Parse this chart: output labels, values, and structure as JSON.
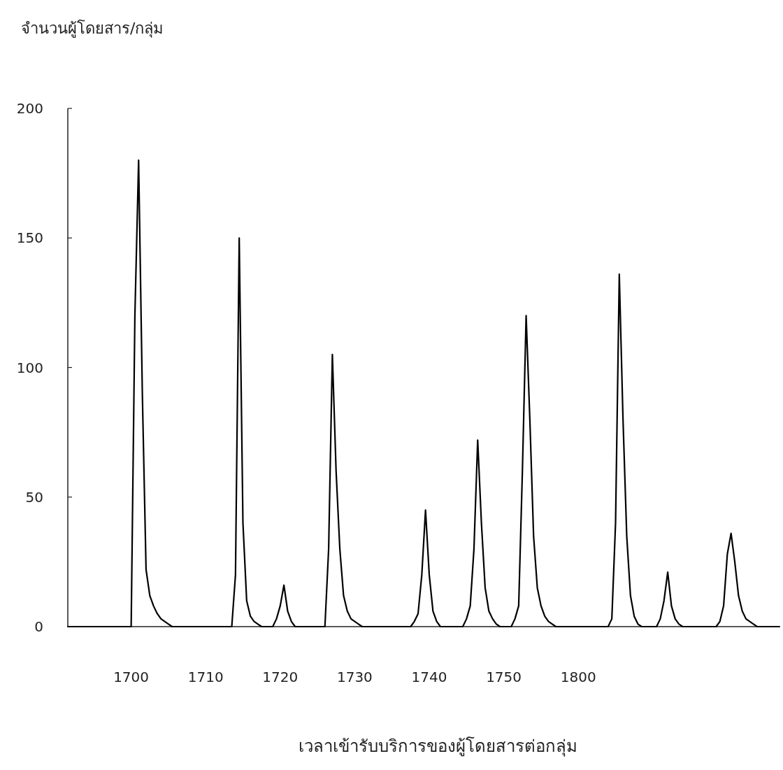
{
  "chart_data": {
    "type": "line",
    "ylabel": "จำนวนผู้โดยสาร/กลุ่ม",
    "xlabel": "เวลาเข้ารับบริการของผู้โดยสารต่อกลุ่ม",
    "ylim": [
      0,
      200
    ],
    "yticks": [
      0,
      50,
      100,
      150,
      200
    ],
    "categories": [
      null,
      null,
      null,
      null,
      null,
      null,
      null,
      null,
      null,
      null,
      null,
      null,
      null,
      null,
      null,
      null,
      null,
      "1700",
      null,
      null,
      null,
      null,
      null,
      null,
      null,
      null,
      null,
      null,
      null,
      null,
      null,
      null,
      null,
      null,
      null,
      null,
      null,
      "1710",
      null,
      null,
      null,
      null,
      null,
      null,
      null,
      null,
      null,
      null,
      null,
      null,
      null,
      null,
      null,
      null,
      null,
      null,
      null,
      "1720",
      null,
      null,
      null,
      null,
      null,
      null,
      null,
      null,
      null,
      null,
      null,
      null,
      null,
      null,
      null,
      null,
      null,
      null,
      null,
      "1730",
      null,
      null,
      null,
      null,
      null,
      null,
      null,
      null,
      null,
      null,
      null,
      null,
      null,
      null,
      null,
      null,
      null,
      null,
      null,
      "1740",
      null,
      null,
      null,
      null,
      null,
      null,
      null,
      null,
      null,
      null,
      null,
      null,
      null,
      null,
      null,
      null,
      null,
      null,
      null,
      "1750",
      null,
      null,
      null,
      null,
      null,
      null,
      null,
      null,
      null,
      null,
      null,
      null,
      null,
      null,
      null,
      null,
      null,
      null,
      null,
      "1800",
      null,
      null,
      null,
      null,
      null,
      null,
      null,
      null,
      null,
      null,
      null,
      null,
      null,
      null,
      null,
      null,
      null,
      null,
      null,
      null,
      null,
      null,
      null,
      null,
      null,
      null,
      null,
      null,
      null,
      null,
      null,
      null,
      null,
      null,
      null,
      null,
      null,
      null,
      null,
      null,
      null,
      null,
      null,
      null,
      null,
      null,
      null,
      null,
      null,
      null,
      null,
      null,
      null,
      null
    ],
    "series": [
      {
        "color": "#000000",
        "values": [
          0,
          0,
          0,
          0,
          0,
          0,
          0,
          0,
          0,
          0,
          0,
          0,
          0,
          0,
          0,
          0,
          0,
          0,
          120,
          180,
          90,
          22,
          12,
          8,
          5,
          3,
          2,
          1,
          0,
          0,
          0,
          0,
          0,
          0,
          0,
          0,
          0,
          0,
          0,
          0,
          0,
          0,
          0,
          0,
          0,
          20,
          150,
          40,
          10,
          4,
          2,
          1,
          0,
          0,
          0,
          0,
          3,
          8,
          16,
          6,
          2,
          0,
          0,
          0,
          0,
          0,
          0,
          0,
          0,
          0,
          30,
          105,
          60,
          30,
          12,
          6,
          3,
          2,
          1,
          0,
          0,
          0,
          0,
          0,
          0,
          0,
          0,
          0,
          0,
          0,
          0,
          0,
          0,
          2,
          5,
          20,
          45,
          20,
          6,
          2,
          0,
          0,
          0,
          0,
          0,
          0,
          0,
          3,
          8,
          30,
          72,
          40,
          15,
          6,
          3,
          1,
          0,
          0,
          0,
          0,
          3,
          8,
          60,
          120,
          80,
          35,
          15,
          8,
          4,
          2,
          1,
          0,
          0,
          0,
          0,
          0,
          0,
          0,
          0,
          0,
          0,
          0,
          0,
          0,
          0,
          0,
          3,
          40,
          136,
          80,
          35,
          12,
          4,
          1,
          0,
          0,
          0,
          0,
          0,
          3,
          10,
          21,
          8,
          3,
          1,
          0,
          0,
          0,
          0,
          0,
          0,
          0,
          0,
          0,
          0,
          2,
          8,
          28,
          36,
          25,
          12,
          6,
          3,
          2,
          1,
          0,
          0,
          0,
          0,
          0,
          0,
          0
        ]
      }
    ]
  }
}
